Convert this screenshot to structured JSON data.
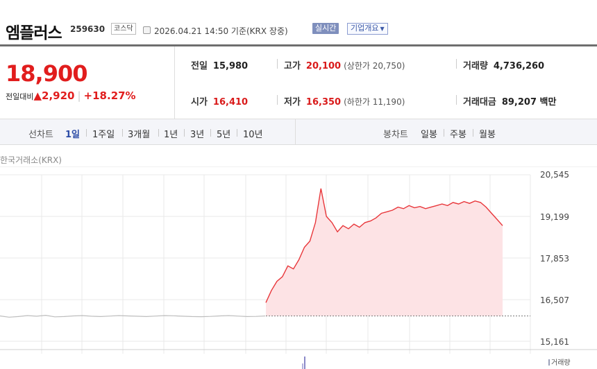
{
  "header": {
    "name": "엠플러스",
    "code": "259630",
    "market": "코스닥",
    "timestamp": "2026.04.21 14:50  기준(KRX 장중)",
    "realtime_button": "실시간",
    "company_button": "기업개요",
    "company_caret": "▼"
  },
  "price": {
    "current": "18,900",
    "change_label": "전일대비",
    "change_arrow": "▲",
    "change": "2,920",
    "change_pct": "+18.27%"
  },
  "stats": {
    "prev_close_label": "전일",
    "prev_close": "15,980",
    "high_label": "고가",
    "high": "20,100",
    "upper_limit": "(상한가 20,750)",
    "volume_label": "거래량",
    "volume": "4,736,260",
    "open_label": "시가",
    "open": "16,410",
    "low_label": "저가",
    "low": "16,350",
    "lower_limit": "(하한가 11,190)",
    "amount_label": "거래대금",
    "amount": "89,207 백만"
  },
  "tabs": {
    "line_label": "선차트",
    "line_periods": [
      "1일",
      "1주일",
      "3개월",
      "1년",
      "3년",
      "5년",
      "10년"
    ],
    "candle_label": "봉차트",
    "candle_periods": [
      "일봉",
      "주봉",
      "월봉"
    ],
    "selected": "1일"
  },
  "chart": {
    "exchange_label": "한국거래소(KRX)",
    "volume_label": "거래량",
    "colors": {
      "up": "#e8363a",
      "fill": "#fde3e5",
      "prev": "#bdbdbd",
      "grid": "#e8e8e8"
    }
  },
  "chart_data": {
    "type": "line",
    "ylim": [
      15161,
      20545
    ],
    "yticks": [
      "20,545",
      "19,199",
      "17,853",
      "16,507",
      "15,161"
    ],
    "yticks_values": [
      20545,
      19199,
      17853,
      16507,
      15161
    ],
    "reference_line": 15980,
    "prev_day_series": {
      "values": [
        15980,
        15940,
        15960,
        15990,
        15970,
        16000,
        15950,
        15960,
        15980,
        15990,
        15970,
        15960,
        15975,
        15990,
        15980,
        15970,
        15960,
        15975,
        15990,
        15985,
        15970,
        15960,
        15955,
        15965,
        15980,
        15990,
        15975,
        15960,
        15965,
        15980
      ]
    },
    "today_series": {
      "values": [
        16410,
        16800,
        17100,
        17250,
        17600,
        17500,
        17800,
        18200,
        18400,
        19000,
        20100,
        19200,
        19000,
        18700,
        18900,
        18800,
        18950,
        18850,
        19000,
        19050,
        19150,
        19300,
        19350,
        19400,
        19500,
        19450,
        19550,
        19480,
        19520,
        19450,
        19500,
        19550,
        19600,
        19550,
        19650,
        19600,
        19680,
        19620,
        19700,
        19650,
        19500,
        19300,
        19100,
        18900
      ]
    }
  }
}
